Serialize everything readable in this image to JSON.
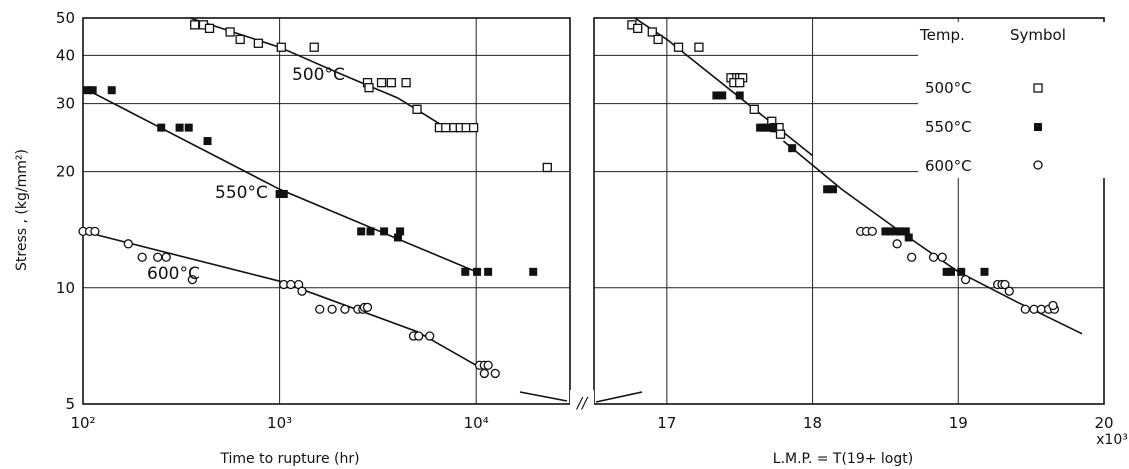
{
  "chart_data": [
    {
      "type": "scatter",
      "xlabel": "Time to rupture (hr)",
      "ylabel": "Stress , (kg/mm²)",
      "xscale": "log",
      "yscale": "log",
      "xlim": [
        100,
        30000
      ],
      "ylim": [
        5,
        50
      ],
      "x_ticks": [
        {
          "value": 100,
          "label": "10²"
        },
        {
          "value": 1000,
          "label": "10³"
        },
        {
          "value": 10000,
          "label": "10⁴"
        }
      ],
      "y_ticks": [
        {
          "value": 5,
          "label": "5"
        },
        {
          "value": 10,
          "label": "10"
        },
        {
          "value": 20,
          "label": "20"
        },
        {
          "value": 30,
          "label": "30"
        },
        {
          "value": 40,
          "label": "40"
        },
        {
          "value": 50,
          "label": "50"
        }
      ],
      "series": [
        {
          "name": "500°C",
          "marker": "open-square",
          "points": [
            [
              370,
              48
            ],
            [
              410,
              48
            ],
            [
              440,
              47
            ],
            [
              560,
              46
            ],
            [
              630,
              44
            ],
            [
              780,
              43
            ],
            [
              1020,
              42
            ],
            [
              1500,
              42
            ],
            [
              2800,
              34
            ],
            [
              3300,
              34
            ],
            [
              3700,
              34
            ],
            [
              4400,
              34
            ],
            [
              2850,
              33
            ],
            [
              5000,
              29
            ],
            [
              6500,
              26
            ],
            [
              7000,
              26
            ],
            [
              7700,
              26
            ],
            [
              8300,
              26
            ],
            [
              8900,
              26
            ],
            [
              9700,
              26
            ],
            [
              23000,
              20.5
            ]
          ],
          "trend": [
            [
              350,
              50
            ],
            [
              1000,
              42
            ],
            [
              2000,
              36
            ],
            [
              4000,
              31
            ],
            [
              7000,
              26
            ]
          ]
        },
        {
          "name": "550°C",
          "marker": "filled-square",
          "points": [
            [
              105,
              32.5
            ],
            [
              112,
              32.5
            ],
            [
              140,
              32.5
            ],
            [
              250,
              26
            ],
            [
              310,
              26
            ],
            [
              345,
              26
            ],
            [
              430,
              24
            ],
            [
              1000,
              17.5
            ],
            [
              1050,
              17.5
            ],
            [
              2600,
              14
            ],
            [
              2900,
              14
            ],
            [
              3400,
              14
            ],
            [
              4000,
              13.5
            ],
            [
              4100,
              14
            ],
            [
              8800,
              11
            ],
            [
              10100,
              11
            ],
            [
              11500,
              11
            ],
            [
              19500,
              11
            ]
          ],
          "trend": [
            [
              100,
              33
            ],
            [
              1000,
              18
            ],
            [
              10000,
              11
            ]
          ]
        },
        {
          "name": "600°C",
          "marker": "open-circle",
          "points": [
            [
              100,
              14
            ],
            [
              108,
              14
            ],
            [
              115,
              14
            ],
            [
              170,
              13
            ],
            [
              200,
              12
            ],
            [
              240,
              12
            ],
            [
              265,
              12
            ],
            [
              360,
              10.5
            ],
            [
              1050,
              10.2
            ],
            [
              1140,
              10.2
            ],
            [
              1250,
              10.2
            ],
            [
              1300,
              9.8
            ],
            [
              1600,
              8.8
            ],
            [
              1850,
              8.8
            ],
            [
              2150,
              8.8
            ],
            [
              2500,
              8.8
            ],
            [
              2650,
              8.8
            ],
            [
              2700,
              8.9
            ],
            [
              2800,
              8.9
            ],
            [
              4800,
              7.5
            ],
            [
              5100,
              7.5
            ],
            [
              5800,
              7.5
            ],
            [
              10400,
              6.3
            ],
            [
              11000,
              6.3
            ],
            [
              11500,
              6.3
            ],
            [
              11000,
              6
            ],
            [
              12500,
              6
            ]
          ],
          "trend": [
            [
              100,
              14
            ],
            [
              1000,
              10.4
            ],
            [
              5000,
              7.7
            ],
            [
              10000,
              6.3
            ]
          ]
        }
      ]
    },
    {
      "type": "scatter",
      "xlabel": "L.M.P. = T(19+ logt)",
      "x_multiplier": "x10³",
      "ylim": [
        5,
        50
      ],
      "xlim": [
        16.5,
        20
      ],
      "x_ticks": [
        {
          "value": 17,
          "label": "17"
        },
        {
          "value": 18,
          "label": "18"
        },
        {
          "value": 19,
          "label": "19"
        },
        {
          "value": 20,
          "label": "20"
        }
      ],
      "legend": {
        "placement": "top-right",
        "header_temp": "Temp.",
        "header_symbol": "Symbol"
      },
      "series": [
        {
          "name": "500°C",
          "marker": "open-square",
          "points": [
            [
              16.76,
              48
            ],
            [
              16.8,
              47
            ],
            [
              16.9,
              46
            ],
            [
              16.94,
              44
            ],
            [
              17.08,
              42
            ],
            [
              17.22,
              42
            ],
            [
              17.44,
              35
            ],
            [
              17.48,
              35
            ],
            [
              17.5,
              35
            ],
            [
              17.52,
              35
            ],
            [
              17.46,
              34
            ],
            [
              17.5,
              34
            ],
            [
              17.6,
              29
            ],
            [
              17.72,
              27
            ],
            [
              17.74,
              26
            ],
            [
              17.76,
              26
            ],
            [
              17.77,
              26
            ],
            [
              17.78,
              25
            ]
          ],
          "trend": [
            [
              16.78,
              50
            ],
            [
              17,
              44
            ],
            [
              18,
              22
            ]
          ]
        },
        {
          "name": "550°C",
          "marker": "filled-square",
          "points": [
            [
              17.34,
              31.5
            ],
            [
              17.38,
              31.5
            ],
            [
              17.5,
              31.5
            ],
            [
              17.64,
              26
            ],
            [
              17.67,
              26
            ],
            [
              17.7,
              26
            ],
            [
              17.73,
              26
            ],
            [
              17.86,
              23
            ],
            [
              18.1,
              18
            ],
            [
              18.14,
              18
            ],
            [
              18.5,
              14
            ],
            [
              18.53,
              14
            ],
            [
              18.57,
              14
            ],
            [
              18.6,
              14
            ],
            [
              18.64,
              14
            ],
            [
              18.66,
              13.5
            ],
            [
              18.92,
              11
            ],
            [
              18.95,
              11
            ],
            [
              19.02,
              11
            ],
            [
              19.18,
              11
            ]
          ],
          "trend": [
            [
              17.8,
              24
            ],
            [
              18.2,
              18
            ],
            [
              18.6,
              14
            ],
            [
              19,
              11
            ]
          ]
        },
        {
          "name": "600°C",
          "marker": "open-circle",
          "points": [
            [
              18.33,
              14
            ],
            [
              18.37,
              14
            ],
            [
              18.41,
              14
            ],
            [
              18.58,
              13
            ],
            [
              18.68,
              12
            ],
            [
              18.83,
              12
            ],
            [
              18.89,
              12
            ],
            [
              19.05,
              10.5
            ],
            [
              19.27,
              10.2
            ],
            [
              19.3,
              10.2
            ],
            [
              19.32,
              10.2
            ],
            [
              19.35,
              9.8
            ],
            [
              19.46,
              8.8
            ],
            [
              19.52,
              8.8
            ],
            [
              19.57,
              8.8
            ],
            [
              19.62,
              8.8
            ],
            [
              19.66,
              8.8
            ],
            [
              19.65,
              9
            ]
          ],
          "trend": [
            [
              19,
              11
            ],
            [
              19.4,
              9.2
            ],
            [
              19.85,
              7.6
            ]
          ]
        }
      ]
    }
  ],
  "labels": {
    "ylabel": "Stress , (kg/mm²)",
    "left_xlabel": "Time to rupture (hr)",
    "right_xlabel": "L.M.P. = T(19+ logt)",
    "multiplier": "x10³",
    "series_500": "500°C",
    "series_550": "550°C",
    "series_600": "600°C",
    "legend_temp": "Temp.",
    "legend_symbol": "Symbol",
    "break_mark": "//"
  }
}
